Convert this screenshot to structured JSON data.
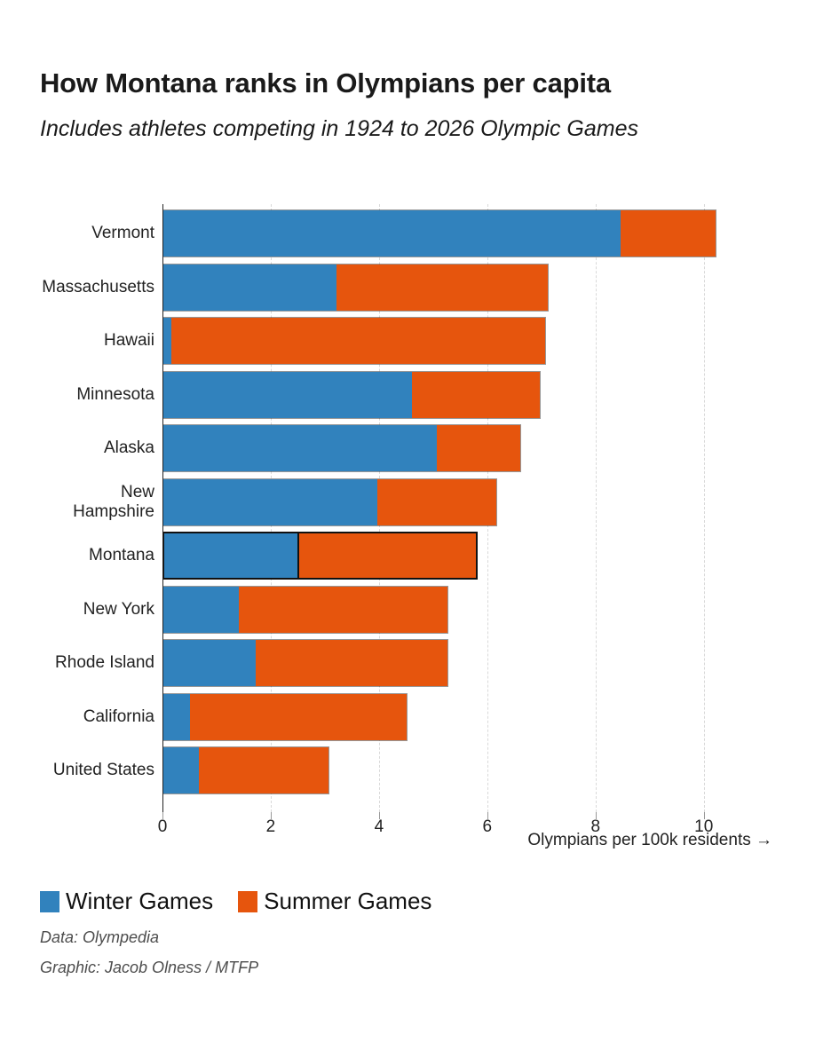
{
  "header": {
    "title": "How Montana ranks in Olympians per capita",
    "subtitle": "Includes athletes competing in 1924 to 2026 Olympic Games"
  },
  "chart_data": {
    "type": "bar",
    "stacked": true,
    "orientation": "horizontal",
    "title": "How Montana ranks in Olympians per capita",
    "subtitle": "Includes athletes competing in 1924 to 2026 Olympic Games",
    "categories": [
      "Vermont",
      "Massachusetts",
      "Hawaii",
      "Minnesota",
      "Alaska",
      "New Hampshire",
      "Montana",
      "New York",
      "Rhode Island",
      "California",
      "United States"
    ],
    "series": [
      {
        "name": "Winter Games",
        "color": "#3182bd",
        "values": [
          8.45,
          3.2,
          0.15,
          4.6,
          5.05,
          3.95,
          2.5,
          1.4,
          1.7,
          0.5,
          0.65
        ]
      },
      {
        "name": "Summer Games",
        "color": "#e6550d",
        "values": [
          1.75,
          3.9,
          6.9,
          2.35,
          1.55,
          2.2,
          3.25,
          3.85,
          3.55,
          4.0,
          2.4
        ]
      }
    ],
    "totals": [
      10.2,
      7.1,
      7.05,
      6.95,
      6.6,
      6.15,
      5.75,
      5.25,
      5.25,
      4.5,
      3.05
    ],
    "highlighted_category": "Montana",
    "highlight_outline_color": "#111111",
    "x_ticks": [
      0,
      2,
      4,
      6,
      8,
      10
    ],
    "xlim": [
      0,
      12.3
    ],
    "xlabel": "Olympians per 100k residents →",
    "ylabel": "",
    "grid": "vertical-dashed",
    "legend_position": "bottom-left"
  },
  "footer": {
    "data_credit": "Data: Olympedia",
    "graphic_credit": "Graphic: Jacob Olness / MTFP"
  }
}
